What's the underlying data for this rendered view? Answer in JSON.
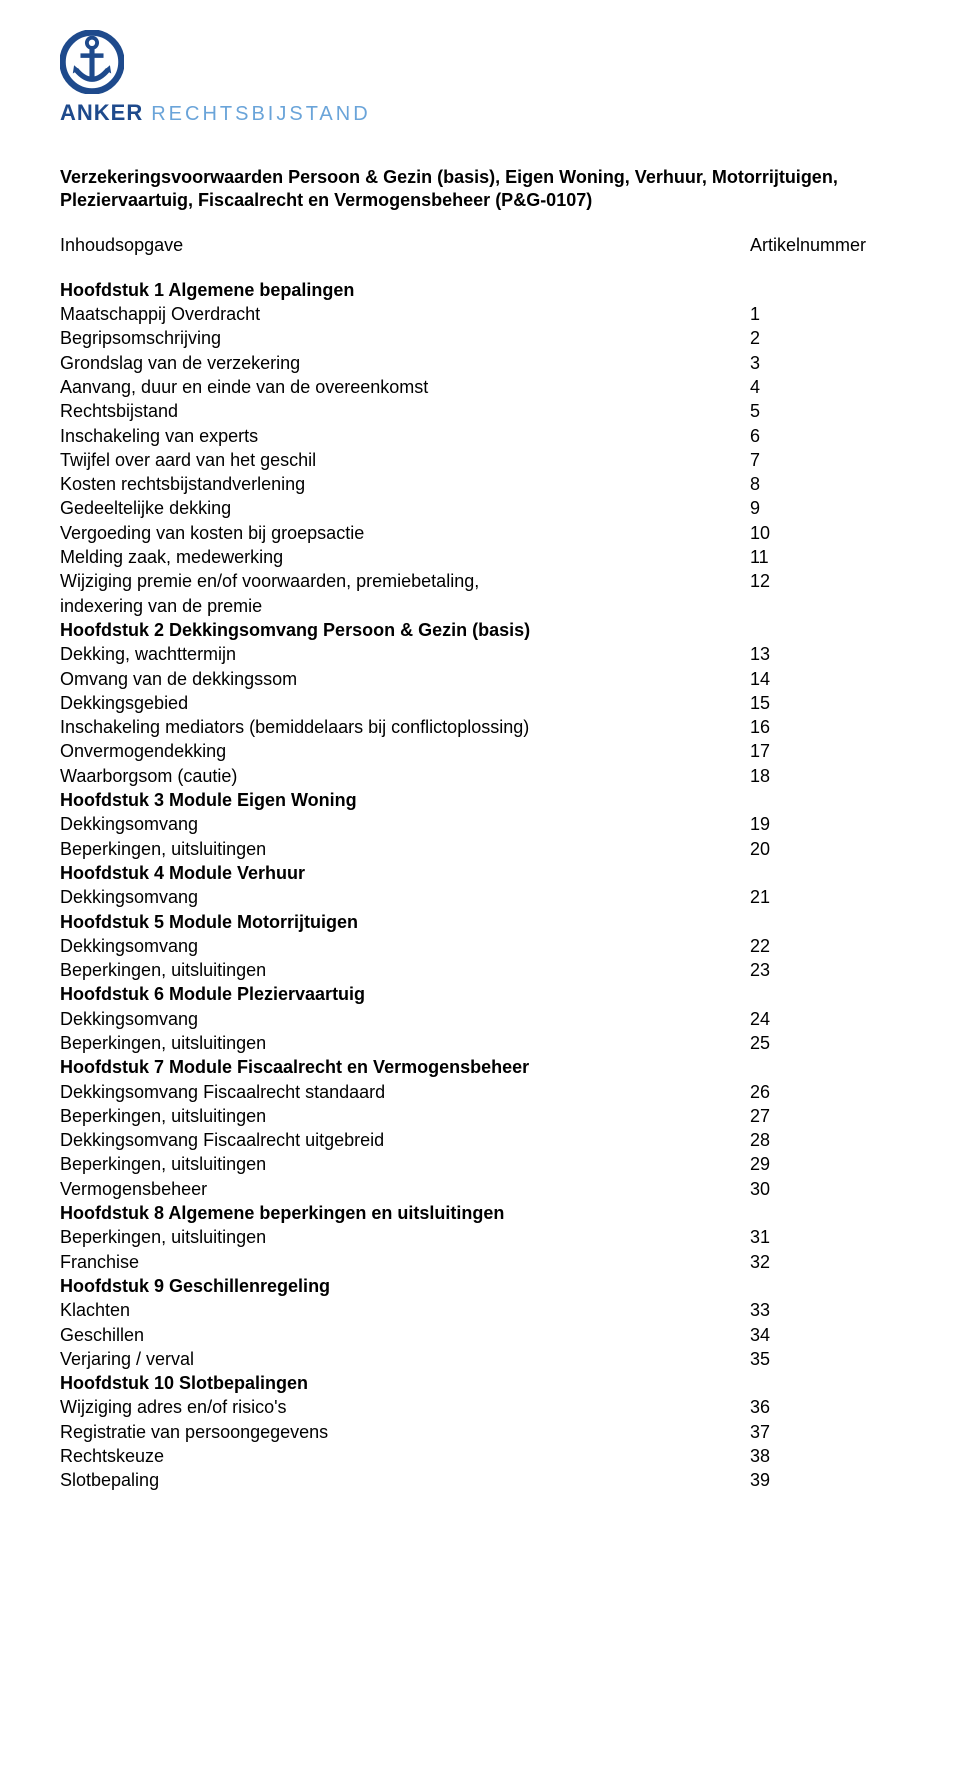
{
  "brand": {
    "name": "ANKER",
    "sub": "RECHTSBIJSTAND",
    "colors": {
      "primary": "#1e4a8c",
      "secondary": "#6aa4d9"
    }
  },
  "doc_title": "Verzekeringsvoorwaarden Persoon & Gezin (basis), Eigen Woning, Verhuur, Motorrijtuigen, Pleziervaartuig, Fiscaalrecht en Vermogensbeheer (P&G-0107)",
  "header_left": "Inhoudsopgave",
  "header_right": "Artikelnummer",
  "toc": [
    {
      "label": "Hoofdstuk 1 Algemene bepalingen",
      "bold": true
    },
    {
      "label": "Maatschappij Overdracht",
      "num": "1"
    },
    {
      "label": "Begripsomschrijving",
      "num": "2"
    },
    {
      "label": "Grondslag van de verzekering",
      "num": "3"
    },
    {
      "label": "Aanvang, duur en einde van de overeenkomst",
      "num": "4"
    },
    {
      "label": "Rechtsbijstand",
      "num": "5"
    },
    {
      "label": "Inschakeling van experts",
      "num": "6"
    },
    {
      "label": "Twijfel over aard van het geschil",
      "num": "7"
    },
    {
      "label": "Kosten rechtsbijstandverlening",
      "num": "8"
    },
    {
      "label": "Gedeeltelijke dekking",
      "num": "9"
    },
    {
      "label": "Vergoeding van kosten bij groepsactie",
      "num": "10"
    },
    {
      "label": "Melding zaak, medewerking",
      "num": "11"
    },
    {
      "label": "Wijziging premie en/of voorwaarden, premiebetaling,",
      "num": "12"
    },
    {
      "label": "indexering van de premie"
    },
    {
      "label": "Hoofdstuk 2 Dekkingsomvang Persoon & Gezin (basis)",
      "bold": true
    },
    {
      "label": "Dekking, wachttermijn",
      "num": "13"
    },
    {
      "label": "Omvang van de dekkingssom",
      "num": "14"
    },
    {
      "label": "Dekkingsgebied",
      "num": "15"
    },
    {
      "label": "Inschakeling mediators (bemiddelaars bij conflictoplossing)",
      "num": "16"
    },
    {
      "label": "Onvermogendekking",
      "num": "17"
    },
    {
      "label": "Waarborgsom (cautie)",
      "num": "18"
    },
    {
      "label": "Hoofdstuk 3 Module Eigen Woning",
      "bold": true
    },
    {
      "label": "Dekkingsomvang",
      "num": "19"
    },
    {
      "label": "Beperkingen, uitsluitingen",
      "num": "20"
    },
    {
      "label": "Hoofdstuk 4 Module Verhuur",
      "bold": true
    },
    {
      "label": "Dekkingsomvang",
      "num": "21"
    },
    {
      "label": "Hoofdstuk 5 Module Motorrijtuigen",
      "bold": true
    },
    {
      "label": "Dekkingsomvang",
      "num": "22"
    },
    {
      "label": "Beperkingen, uitsluitingen",
      "num": "23"
    },
    {
      "label": "Hoofdstuk 6 Module Pleziervaartuig",
      "bold": true
    },
    {
      "label": "Dekkingsomvang",
      "num": "24"
    },
    {
      "label": "Beperkingen, uitsluitingen",
      "num": "25"
    },
    {
      "label": "Hoofdstuk 7 Module Fiscaalrecht en Vermogensbeheer",
      "bold": true
    },
    {
      "label": "Dekkingsomvang Fiscaalrecht standaard",
      "num": "26"
    },
    {
      "label": "Beperkingen, uitsluitingen",
      "num": "27"
    },
    {
      "label": "Dekkingsomvang Fiscaalrecht uitgebreid",
      "num": "28"
    },
    {
      "label": "Beperkingen, uitsluitingen",
      "num": "29"
    },
    {
      "label": "Vermogensbeheer",
      "num": "30"
    },
    {
      "label": "Hoofdstuk 8 Algemene beperkingen en uitsluitingen",
      "bold": true
    },
    {
      "label": "Beperkingen, uitsluitingen",
      "num": "31"
    },
    {
      "label": "Franchise",
      "num": "32"
    },
    {
      "label": "Hoofdstuk 9 Geschillenregeling",
      "bold": true
    },
    {
      "label": "Klachten",
      "num": "33"
    },
    {
      "label": "Geschillen",
      "num": "34"
    },
    {
      "label": "Verjaring / verval",
      "num": "35"
    },
    {
      "label": "Hoofdstuk 10 Slotbepalingen",
      "bold": true
    },
    {
      "label": "Wijziging adres en/of risico's",
      "num": "36"
    },
    {
      "label": "Registratie van persoongegevens",
      "num": "37"
    },
    {
      "label": "Rechtskeuze",
      "num": "38"
    },
    {
      "label": "Slotbepaling",
      "num": "39"
    }
  ]
}
